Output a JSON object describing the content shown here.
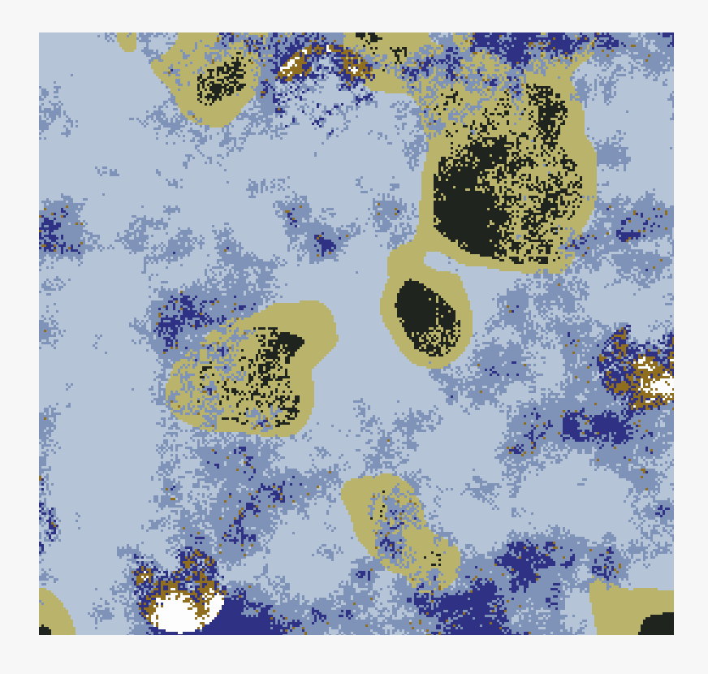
{
  "figure": {
    "kind": "categorical-noise-map",
    "palette": {
      "dark_navy": "#2e3184",
      "slate_blue": "#7f92b8",
      "pale_blue": "#b5c4d6",
      "khaki": "#b9b36c",
      "near_black": "#1f241e",
      "ochre": "#8f6e1f",
      "white": "#fdfdfd"
    }
  }
}
